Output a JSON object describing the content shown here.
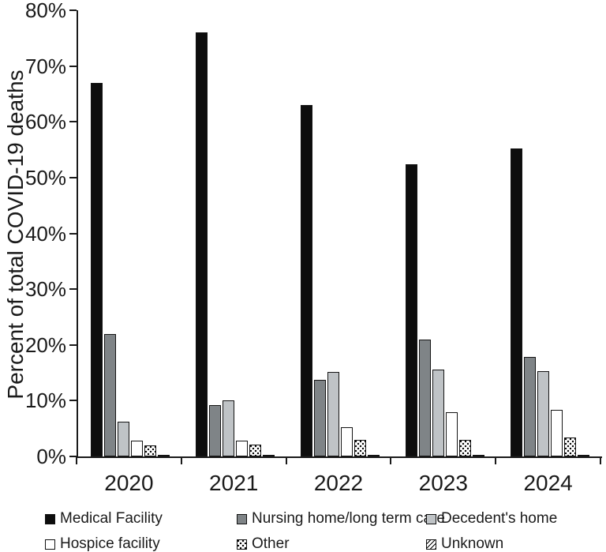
{
  "chart_data": {
    "type": "bar",
    "title": "",
    "xlabel": "",
    "ylabel": "Percent of total COVID-19 deaths",
    "ylim": [
      0,
      80
    ],
    "ytick_step": 10,
    "ytick_labels": [
      "0%",
      "10%",
      "20%",
      "30%",
      "40%",
      "50%",
      "60%",
      "70%",
      "80%"
    ],
    "grid": false,
    "legend_position": "bottom",
    "categories": [
      "2020",
      "2021",
      "2022",
      "2023",
      "2024"
    ],
    "series": [
      {
        "name": "Medical Facility",
        "fill": "#0d0d0d",
        "pattern": "solid",
        "values": [
          67.0,
          76.0,
          63.0,
          52.4,
          55.2
        ]
      },
      {
        "name": "Nursing home/long term care",
        "fill": "#7f8487",
        "pattern": "solid",
        "values": [
          22.0,
          9.2,
          13.8,
          21.0,
          17.8
        ]
      },
      {
        "name": "Decedent's home",
        "fill": "#bfc3c6",
        "pattern": "solid",
        "values": [
          6.3,
          10.0,
          15.1,
          15.6,
          15.3
        ]
      },
      {
        "name": "Hospice facility",
        "fill": "#ffffff",
        "pattern": "solid",
        "values": [
          2.8,
          2.9,
          5.3,
          8.0,
          8.4
        ]
      },
      {
        "name": "Other",
        "fill": "#ffffff",
        "pattern": "dots",
        "values": [
          2.0,
          2.1,
          3.0,
          3.0,
          3.4
        ]
      },
      {
        "name": "Unknown",
        "fill": "#ffffff",
        "pattern": "diagonal",
        "values": [
          0.2,
          0.2,
          0.3,
          0.1,
          0.1
        ]
      }
    ]
  }
}
